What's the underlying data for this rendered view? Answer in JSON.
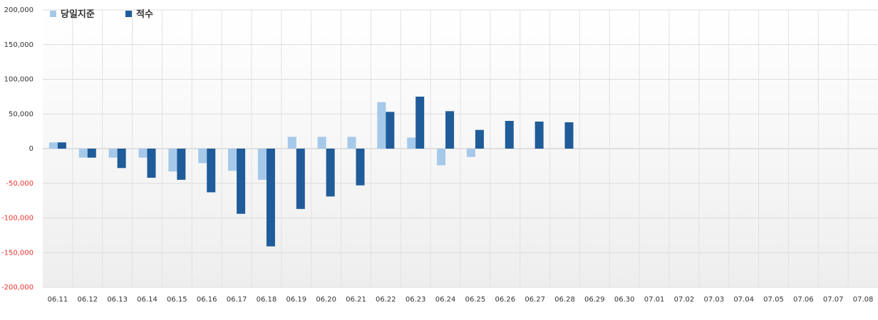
{
  "chart_data": {
    "type": "bar",
    "categories": [
      "06.11",
      "06.12",
      "06.13",
      "06.14",
      "06.15",
      "06.16",
      "06.17",
      "06.18",
      "06.19",
      "06.20",
      "06.21",
      "06.22",
      "06.23",
      "06.24",
      "06.25",
      "06.26",
      "06.27",
      "06.28",
      "06.29",
      "06.30",
      "07.01",
      "07.02",
      "07.03",
      "07.04",
      "07.05",
      "07.06",
      "07.07",
      "07.08"
    ],
    "series": [
      {
        "name": "당일지준",
        "color": "#a6c9ea",
        "values": [
          9000,
          -13000,
          -13000,
          -13000,
          -33000,
          -21000,
          -32000,
          -45000,
          17000,
          17000,
          17000,
          67000,
          16000,
          -24000,
          -12000,
          null,
          null,
          null,
          null,
          null,
          null,
          null,
          null,
          null,
          null,
          null,
          null,
          null
        ]
      },
      {
        "name": "적수",
        "color": "#1f5c99",
        "values": [
          9000,
          -13000,
          -28000,
          -42000,
          -45000,
          -63000,
          -94000,
          -141000,
          -87000,
          -69000,
          -53000,
          53000,
          75000,
          54000,
          27000,
          40000,
          39000,
          38000,
          null,
          null,
          null,
          null,
          null,
          null,
          null,
          null,
          null,
          null
        ]
      }
    ],
    "yticks": [
      200000,
      150000,
      100000,
      50000,
      0,
      -50000,
      -100000,
      -150000,
      -200000
    ],
    "ytick_labels": [
      "200,000",
      "150,000",
      "100,000",
      "50,000",
      "0",
      "-50,000",
      "-100,000",
      "-150,000",
      "-200,000"
    ],
    "ylim": [
      -200000,
      200000
    ],
    "grid": true,
    "legend_position": "top-left",
    "negative_label_color": "#e8342f",
    "positive_label_color": "#333333"
  }
}
